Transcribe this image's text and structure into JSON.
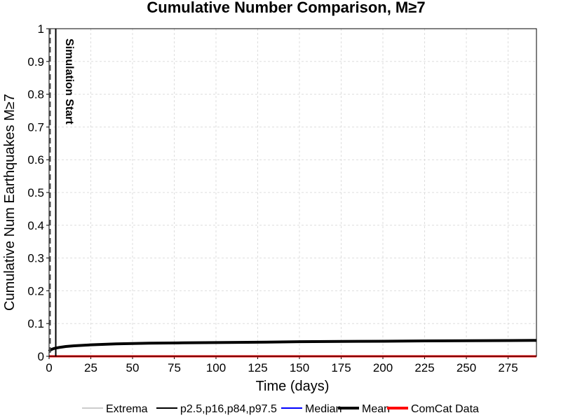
{
  "chart_data": {
    "type": "line",
    "title": "Cumulative Number Comparison, M≥7",
    "xlabel": "Time (days)",
    "ylabel": "Cumulative Num Earthquakes M≥7",
    "xlim": [
      0,
      292
    ],
    "ylim": [
      0,
      1
    ],
    "x_ticks": [
      0,
      25,
      50,
      75,
      100,
      125,
      150,
      175,
      200,
      225,
      250,
      275
    ],
    "y_ticks": [
      0,
      0.1,
      0.2,
      0.3,
      0.4,
      0.5,
      0.6,
      0.7,
      0.8,
      0.9,
      1
    ],
    "y_tick_labels": [
      "0",
      "0.1",
      "0.2",
      "0.3",
      "0.4",
      "0.5",
      "0.6",
      "0.7",
      "0.8",
      "0.9",
      "1"
    ],
    "grid": true,
    "legend_position": "bottom",
    "annotation": {
      "text": "Simulation Start",
      "x": 0.5
    },
    "series": [
      {
        "name": "Mean",
        "color": "#000000",
        "x": [
          0,
          1,
          3,
          6,
          10,
          15,
          25,
          40,
          60,
          80,
          100,
          125,
          150,
          175,
          200,
          225,
          250,
          275,
          292
        ],
        "y": [
          0.015,
          0.02,
          0.024,
          0.027,
          0.03,
          0.032,
          0.035,
          0.038,
          0.04,
          0.041,
          0.042,
          0.043,
          0.0445,
          0.0455,
          0.046,
          0.047,
          0.0475,
          0.048,
          0.0485
        ]
      },
      {
        "name": "ComCat Data",
        "color": "#ff0000",
        "x": [
          0,
          292
        ],
        "y": [
          0,
          0
        ]
      },
      {
        "name": "p2.5,p16,p84,p97.5",
        "color": "#000000",
        "x": [
          4,
          4
        ],
        "y": [
          0,
          1
        ]
      }
    ],
    "legend": [
      {
        "name": "Extrema",
        "color": "#999999",
        "style": "thin"
      },
      {
        "name": "p2.5,p16,p84,p97.5",
        "color": "#000000",
        "style": "medium"
      },
      {
        "name": "Median",
        "color": "#0000ff",
        "style": "medium"
      },
      {
        "name": "Mean",
        "color": "#000000",
        "style": "thick"
      },
      {
        "name": "ComCat Data",
        "color": "#ff0000",
        "style": "thick"
      }
    ]
  }
}
